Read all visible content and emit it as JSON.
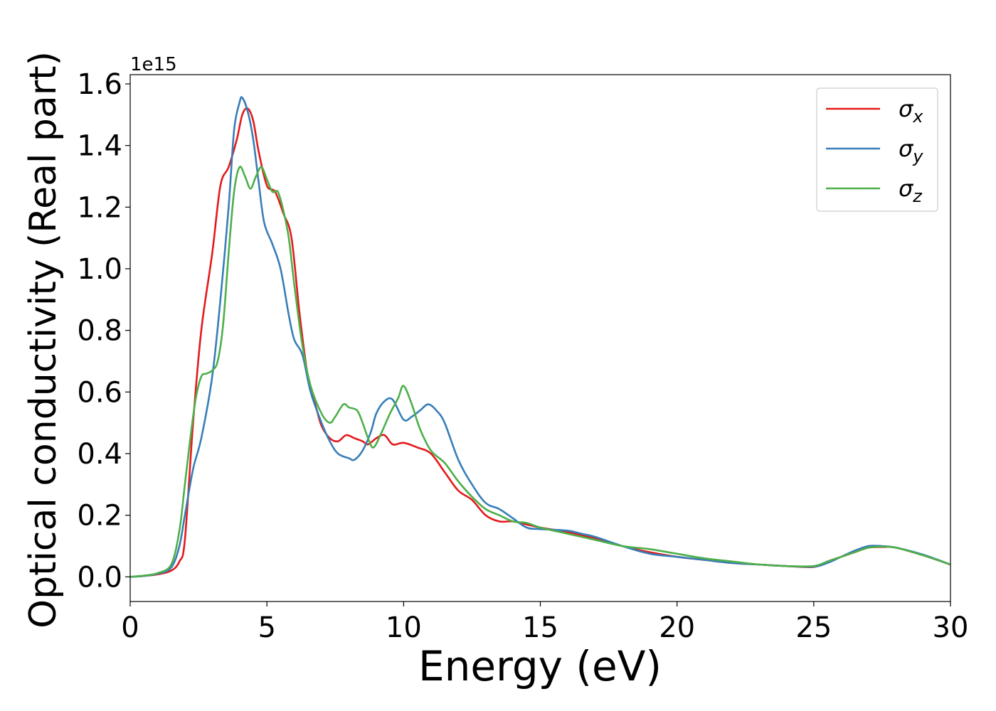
{
  "chart_data": {
    "type": "line",
    "xlabel": "Energy (eV)",
    "ylabel": "Optical conductivity (Real part)",
    "offset_text": "1e15",
    "xlim": [
      0,
      30
    ],
    "ylim": [
      -0.08,
      1.63
    ],
    "xticks": [
      0,
      5,
      10,
      15,
      20,
      25,
      30
    ],
    "yticks": [
      0.0,
      0.2,
      0.4,
      0.6,
      0.8,
      1.0,
      1.2,
      1.4,
      1.6
    ],
    "xtick_labels": [
      "0",
      "5",
      "10",
      "15",
      "20",
      "25",
      "30"
    ],
    "ytick_labels": [
      "0.0",
      "0.2",
      "0.4",
      "0.6",
      "0.8",
      "1.0",
      "1.2",
      "1.4",
      "1.6"
    ],
    "grid": false,
    "legend_position": "top-right",
    "series": [
      {
        "name": "σ_x",
        "legend_base": "σ",
        "legend_sub": "x",
        "color": "#e41a1c",
        "x": [
          0,
          0.5,
          1.0,
          1.5,
          1.8,
          2.0,
          2.3,
          2.6,
          3.0,
          3.3,
          3.6,
          3.9,
          4.1,
          4.3,
          4.5,
          4.7,
          5.0,
          5.3,
          5.6,
          5.9,
          6.2,
          6.5,
          6.8,
          7.0,
          7.3,
          7.6,
          7.9,
          8.2,
          8.5,
          8.7,
          9.0,
          9.3,
          9.6,
          10.0,
          10.5,
          11.0,
          11.5,
          12.0,
          12.5,
          13.0,
          13.5,
          14.0,
          14.5,
          15.0,
          16.0,
          17.0,
          18.0,
          19.0,
          20.0,
          21.0,
          22.0,
          23.0,
          24.0,
          25.0,
          25.5,
          26.0,
          26.5,
          27.0,
          27.5,
          28.0,
          29.0,
          30.0
        ],
        "y": [
          0.0,
          0.003,
          0.008,
          0.02,
          0.05,
          0.12,
          0.5,
          0.8,
          1.05,
          1.27,
          1.33,
          1.42,
          1.5,
          1.52,
          1.48,
          1.38,
          1.27,
          1.25,
          1.18,
          1.1,
          0.85,
          0.65,
          0.55,
          0.49,
          0.45,
          0.44,
          0.46,
          0.45,
          0.44,
          0.43,
          0.45,
          0.46,
          0.43,
          0.435,
          0.42,
          0.4,
          0.34,
          0.28,
          0.25,
          0.2,
          0.18,
          0.18,
          0.17,
          0.16,
          0.145,
          0.125,
          0.1,
          0.08,
          0.065,
          0.055,
          0.045,
          0.04,
          0.035,
          0.032,
          0.05,
          0.065,
          0.08,
          0.095,
          0.097,
          0.095,
          0.07,
          0.04
        ]
      },
      {
        "name": "σ_y",
        "legend_base": "σ",
        "legend_sub": "y",
        "color": "#377eb8",
        "x": [
          0,
          0.5,
          1.0,
          1.5,
          1.8,
          2.0,
          2.3,
          2.6,
          3.0,
          3.3,
          3.6,
          3.8,
          4.0,
          4.1,
          4.3,
          4.5,
          4.7,
          4.9,
          5.2,
          5.5,
          5.8,
          6.0,
          6.3,
          6.6,
          7.0,
          7.3,
          7.6,
          8.0,
          8.2,
          8.5,
          8.8,
          9.0,
          9.3,
          9.6,
          10.0,
          10.3,
          10.6,
          10.9,
          11.2,
          11.5,
          12.0,
          12.5,
          13.0,
          13.5,
          14.0,
          14.5,
          15.0,
          16.0,
          16.5,
          17.0,
          18.0,
          19.0,
          20.0,
          21.0,
          22.0,
          23.0,
          24.0,
          25.0,
          25.5,
          26.0,
          26.5,
          27.0,
          27.5,
          28.0,
          29.0,
          30.0
        ],
        "y": [
          0.0,
          0.003,
          0.01,
          0.03,
          0.1,
          0.2,
          0.35,
          0.45,
          0.65,
          0.9,
          1.2,
          1.45,
          1.54,
          1.555,
          1.51,
          1.42,
          1.28,
          1.15,
          1.08,
          1.0,
          0.85,
          0.77,
          0.72,
          0.6,
          0.5,
          0.44,
          0.4,
          0.385,
          0.38,
          0.41,
          0.47,
          0.53,
          0.57,
          0.575,
          0.51,
          0.52,
          0.54,
          0.56,
          0.54,
          0.5,
          0.38,
          0.3,
          0.24,
          0.22,
          0.19,
          0.16,
          0.155,
          0.15,
          0.14,
          0.13,
          0.1,
          0.075,
          0.065,
          0.055,
          0.045,
          0.04,
          0.035,
          0.033,
          0.045,
          0.065,
          0.085,
          0.1,
          0.1,
          0.095,
          0.072,
          0.04
        ]
      },
      {
        "name": "σ_z",
        "legend_base": "σ",
        "legend_sub": "z",
        "color": "#4daf4a",
        "x": [
          0,
          0.5,
          1.0,
          1.5,
          1.8,
          2.0,
          2.2,
          2.4,
          2.6,
          2.8,
          3.0,
          3.2,
          3.4,
          3.6,
          3.8,
          4.0,
          4.2,
          4.4,
          4.6,
          4.8,
          5.0,
          5.2,
          5.4,
          5.6,
          5.8,
          6.0,
          6.3,
          6.6,
          7.0,
          7.3,
          7.5,
          7.8,
          8.0,
          8.3,
          8.5,
          8.7,
          8.9,
          9.2,
          9.5,
          9.8,
          10.0,
          10.3,
          10.6,
          11.0,
          11.5,
          12.0,
          12.5,
          13.0,
          13.5,
          14.0,
          14.5,
          15.0,
          16.0,
          17.0,
          18.0,
          19.0,
          20.0,
          21.0,
          22.0,
          23.0,
          24.0,
          25.0,
          25.5,
          26.0,
          26.5,
          27.0,
          27.5,
          28.0,
          29.0,
          30.0
        ],
        "y": [
          0.0,
          0.004,
          0.012,
          0.04,
          0.15,
          0.3,
          0.45,
          0.58,
          0.65,
          0.66,
          0.67,
          0.7,
          0.82,
          1.05,
          1.25,
          1.33,
          1.3,
          1.26,
          1.3,
          1.33,
          1.29,
          1.25,
          1.25,
          1.19,
          1.1,
          0.95,
          0.75,
          0.62,
          0.53,
          0.5,
          0.52,
          0.56,
          0.55,
          0.54,
          0.5,
          0.45,
          0.42,
          0.47,
          0.53,
          0.58,
          0.62,
          0.56,
          0.48,
          0.41,
          0.37,
          0.31,
          0.26,
          0.22,
          0.2,
          0.18,
          0.175,
          0.16,
          0.14,
          0.12,
          0.1,
          0.09,
          0.075,
          0.06,
          0.05,
          0.04,
          0.035,
          0.035,
          0.05,
          0.065,
          0.08,
          0.095,
          0.098,
          0.095,
          0.07,
          0.04
        ]
      }
    ]
  }
}
